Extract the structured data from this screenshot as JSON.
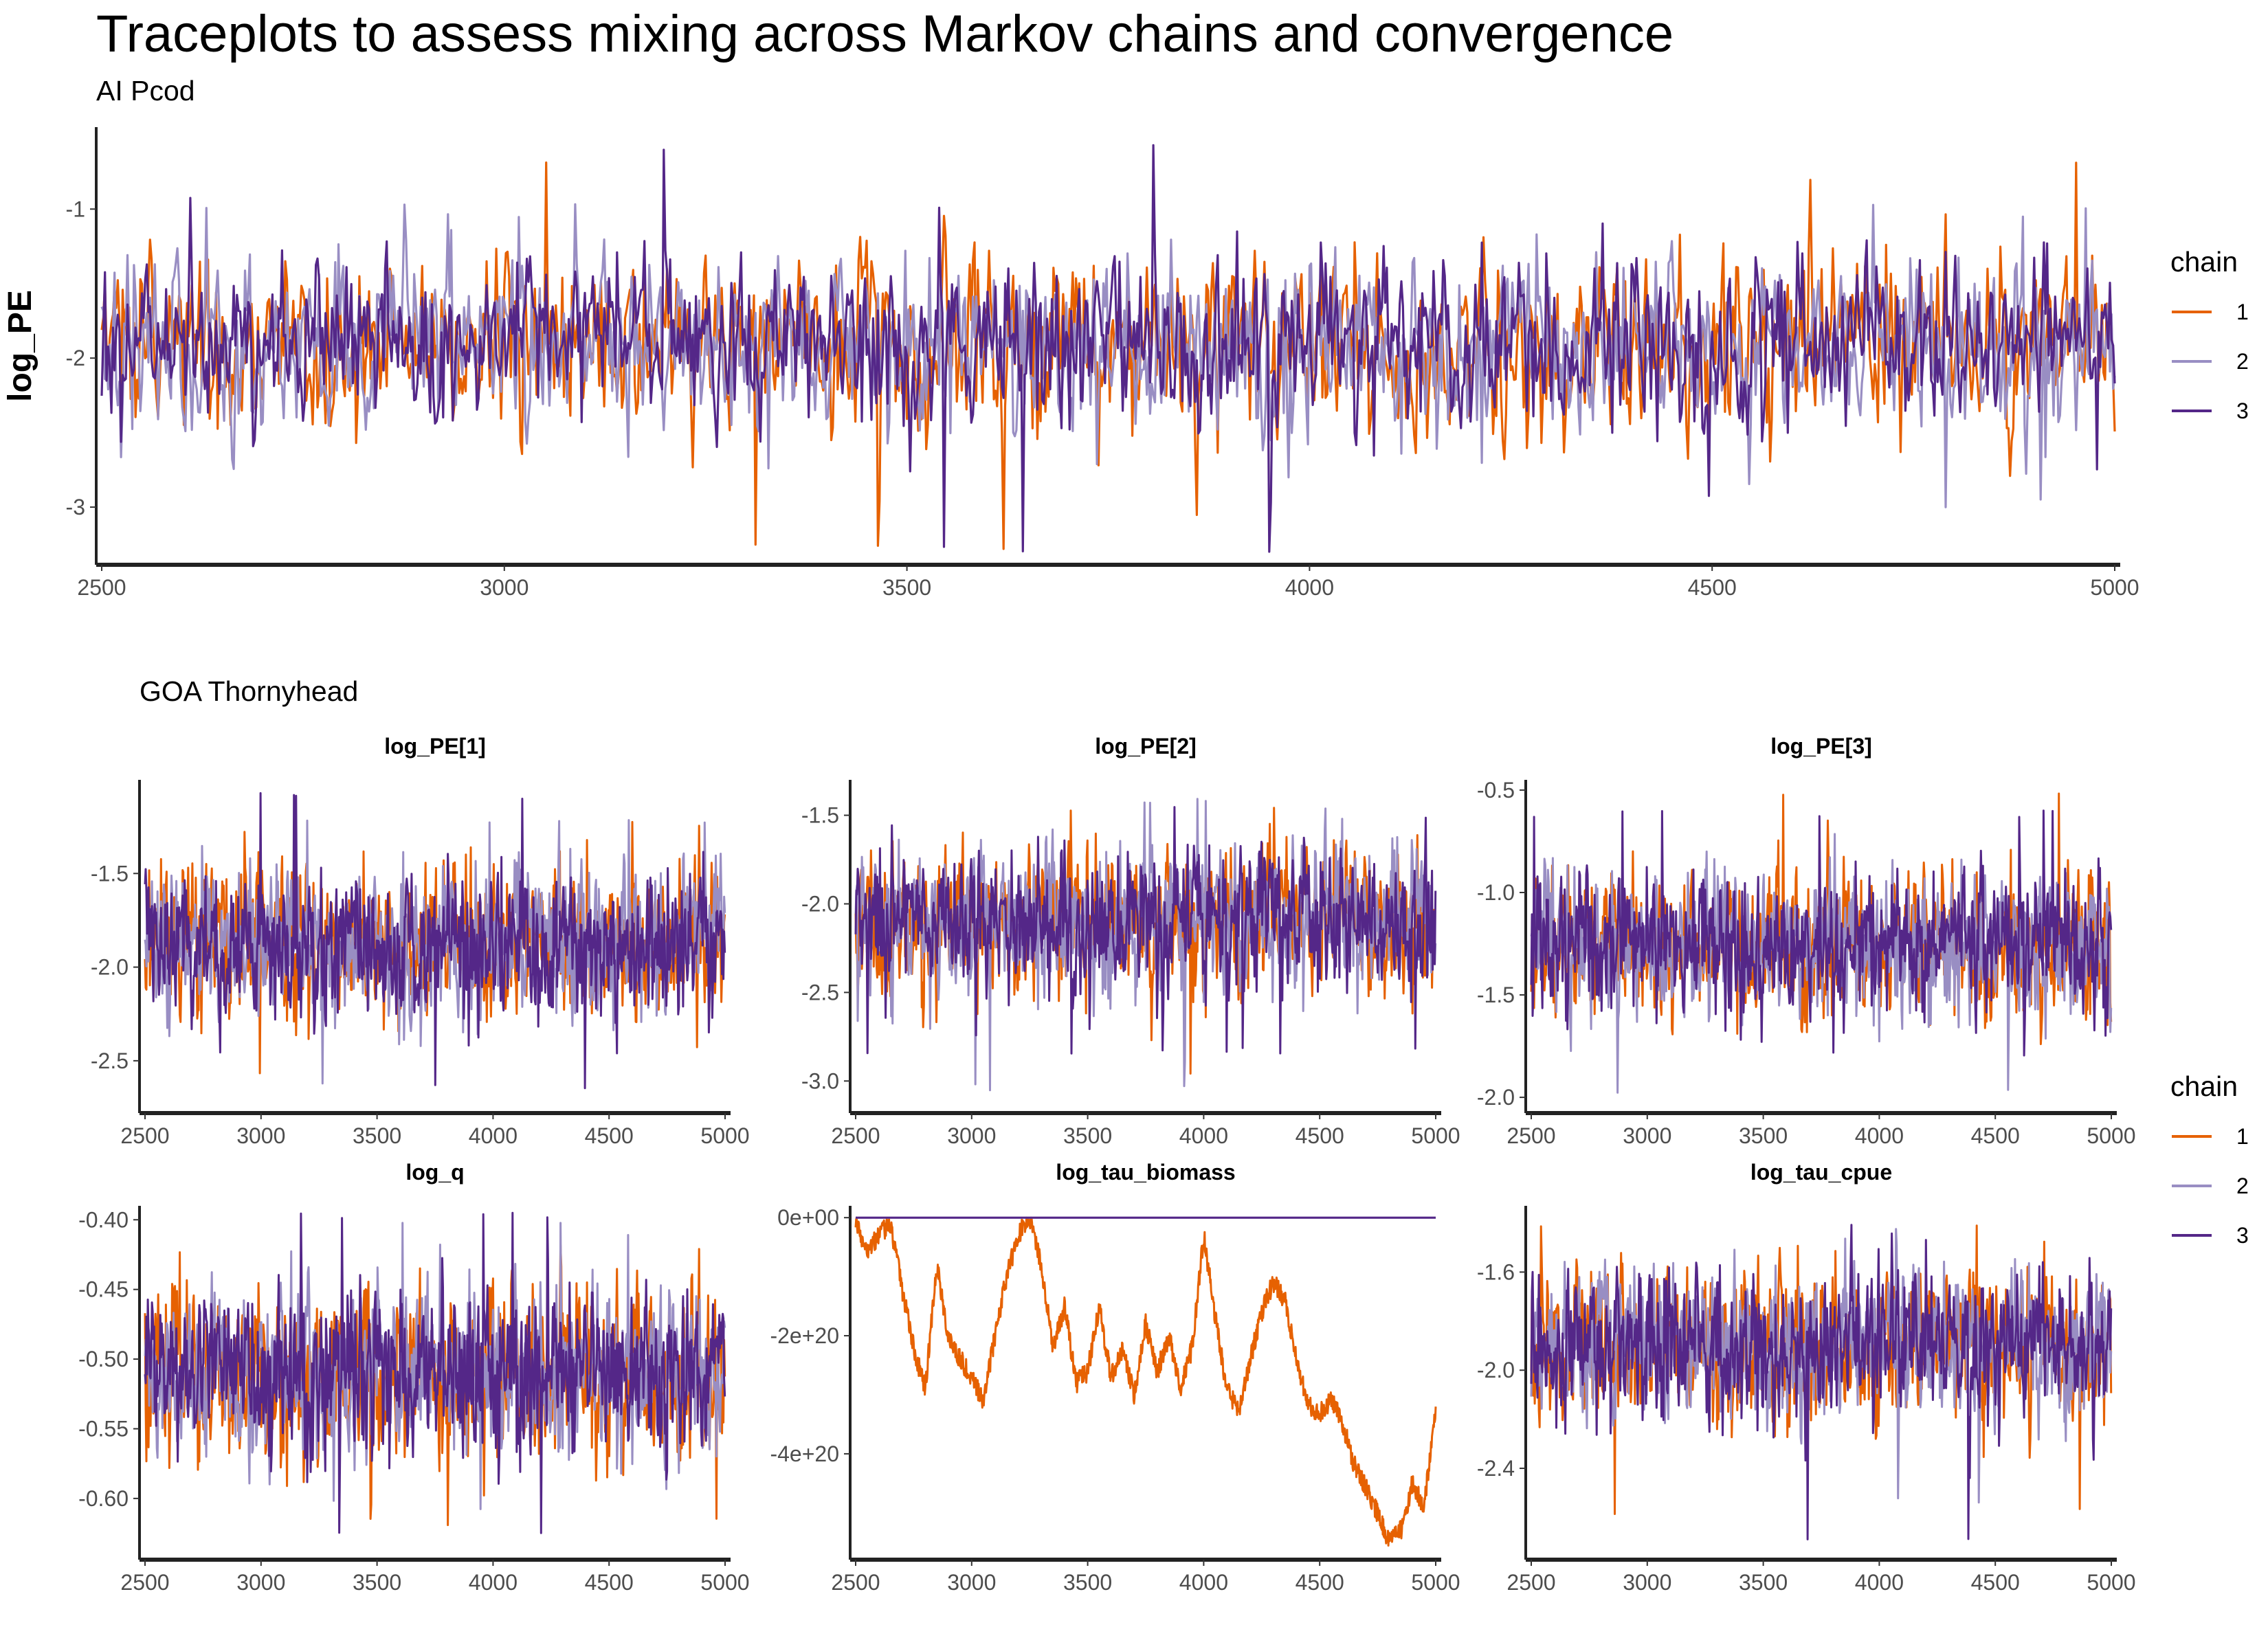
{
  "figure": {
    "title": "Traceplots to assess mixing across Markov chains and convergence",
    "top_subtitle": "AI Pcod",
    "bottom_subtitle": "GOA Thornyhead"
  },
  "legend": {
    "title": "chain",
    "items": [
      {
        "label": "1",
        "color": "#E66101"
      },
      {
        "label": "2",
        "color": "#998EC3"
      },
      {
        "label": "3",
        "color": "#542788"
      }
    ]
  },
  "chart_data": [
    {
      "type": "line",
      "group": "AI Pcod",
      "title": "",
      "ylabel": "log_PE",
      "x_range": [
        2500,
        5000
      ],
      "x_ticks": [
        2500,
        3000,
        3500,
        4000,
        4500,
        5000
      ],
      "y_ticks": [
        -1,
        -2,
        -3
      ],
      "ylim": [
        -3.35,
        -0.45
      ],
      "grid": false,
      "legend_position": "right",
      "series": [
        {
          "name": "1",
          "color": "#E66101",
          "kind": "noise",
          "center": -1.9,
          "sd": 0.28,
          "min": -3.3,
          "max": -0.67
        },
        {
          "name": "2",
          "color": "#998EC3",
          "kind": "noise",
          "center": -1.9,
          "sd": 0.27,
          "min": -3.0,
          "max": -0.95
        },
        {
          "name": "3",
          "color": "#542788",
          "kind": "noise",
          "center": -1.9,
          "sd": 0.26,
          "min": -3.33,
          "max": -0.54
        }
      ]
    },
    {
      "type": "line",
      "group": "GOA Thornyhead",
      "title": "log_PE[1]",
      "x_range": [
        2500,
        5000
      ],
      "x_ticks": [
        2500,
        3000,
        3500,
        4000,
        4500,
        5000
      ],
      "y_ticks": [
        -1.5,
        -2.0,
        -2.5
      ],
      "ylim": [
        -2.75,
        -1.0
      ],
      "grid": false,
      "series": [
        {
          "name": "1",
          "color": "#E66101",
          "kind": "noise",
          "center": -1.88,
          "sd": 0.18,
          "min": -2.6,
          "max": -1.2
        },
        {
          "name": "2",
          "color": "#998EC3",
          "kind": "noise",
          "center": -1.88,
          "sd": 0.18,
          "min": -2.66,
          "max": -1.2
        },
        {
          "name": "3",
          "color": "#542788",
          "kind": "noise",
          "center": -1.88,
          "sd": 0.17,
          "min": -2.66,
          "max": -1.07
        }
      ]
    },
    {
      "type": "line",
      "group": "GOA Thornyhead",
      "title": "log_PE[2]",
      "x_range": [
        2500,
        5000
      ],
      "x_ticks": [
        2500,
        3000,
        3500,
        4000,
        4500,
        5000
      ],
      "y_ticks": [
        -1.5,
        -2.0,
        -2.5,
        -3.0
      ],
      "ylim": [
        -3.15,
        -1.3
      ],
      "grid": false,
      "series": [
        {
          "name": "1",
          "color": "#E66101",
          "kind": "noise",
          "center": -2.1,
          "sd": 0.19,
          "min": -3.0,
          "max": -1.45
        },
        {
          "name": "2",
          "color": "#998EC3",
          "kind": "noise",
          "center": -2.1,
          "sd": 0.18,
          "min": -3.06,
          "max": -1.4
        },
        {
          "name": "3",
          "color": "#542788",
          "kind": "noise",
          "center": -2.1,
          "sd": 0.17,
          "min": -2.85,
          "max": -1.45
        }
      ]
    },
    {
      "type": "line",
      "group": "GOA Thornyhead",
      "title": "log_PE[3]",
      "x_range": [
        2500,
        5000
      ],
      "x_ticks": [
        2500,
        3000,
        3500,
        4000,
        4500,
        5000
      ],
      "y_ticks": [
        -0.5,
        -1.0,
        -1.5,
        -2.0
      ],
      "ylim": [
        -2.05,
        -0.45
      ],
      "grid": false,
      "series": [
        {
          "name": "1",
          "color": "#E66101",
          "kind": "noise",
          "center": -1.25,
          "sd": 0.17,
          "min": -1.9,
          "max": -0.5
        },
        {
          "name": "2",
          "color": "#998EC3",
          "kind": "noise",
          "center": -1.25,
          "sd": 0.16,
          "min": -2.0,
          "max": -0.6
        },
        {
          "name": "3",
          "color": "#542788",
          "kind": "noise",
          "center": -1.25,
          "sd": 0.15,
          "min": -1.8,
          "max": -0.6
        }
      ]
    },
    {
      "type": "line",
      "group": "GOA Thornyhead",
      "title": "log_q",
      "x_range": [
        2500,
        5000
      ],
      "x_ticks": [
        2500,
        3000,
        3500,
        4000,
        4500,
        5000
      ],
      "y_ticks": [
        -0.4,
        -0.45,
        -0.5,
        -0.55,
        -0.6
      ],
      "ylim": [
        -0.64,
        -0.39
      ],
      "grid": false,
      "series": [
        {
          "name": "1",
          "color": "#E66101",
          "kind": "noise",
          "center": -0.51,
          "sd": 0.028,
          "min": -0.62,
          "max": -0.41
        },
        {
          "name": "2",
          "color": "#998EC3",
          "kind": "noise",
          "center": -0.51,
          "sd": 0.027,
          "min": -0.61,
          "max": -0.4
        },
        {
          "name": "3",
          "color": "#542788",
          "kind": "noise",
          "center": -0.51,
          "sd": 0.026,
          "min": -0.63,
          "max": -0.395
        }
      ]
    },
    {
      "type": "line",
      "group": "GOA Thornyhead",
      "title": "log_tau_biomass",
      "x_range": [
        2500,
        5000
      ],
      "x_ticks": [
        2500,
        3000,
        3500,
        4000,
        4500,
        5000
      ],
      "y_ticks": [
        0,
        -2e+20,
        -4e+20
      ],
      "y_tick_labels": [
        "0e+00",
        "-2e+20",
        "-4e+20"
      ],
      "ylim": [
        -5.7e+20,
        2e+19
      ],
      "grid": false,
      "series": [
        {
          "name": "1",
          "color": "#E66101",
          "kind": "path",
          "points": [
            [
              2500,
              0
            ],
            [
              2550,
              -6e+19
            ],
            [
              2600,
              -3e+19
            ],
            [
              2650,
              -1e+19
            ],
            [
              2700,
              -1.2e+20
            ],
            [
              2750,
              -2.2e+20
            ],
            [
              2800,
              -2.9e+20
            ],
            [
              2850,
              -8e+19
            ],
            [
              2900,
              -2e+20
            ],
            [
              2950,
              -2.4e+20
            ],
            [
              3000,
              -2.7e+20
            ],
            [
              3050,
              -3.1e+20
            ],
            [
              3100,
              -2e+20
            ],
            [
              3150,
              -1e+20
            ],
            [
              3200,
              -3e+19
            ],
            [
              3250,
              0
            ],
            [
              3300,
              -8e+19
            ],
            [
              3350,
              -2.2e+20
            ],
            [
              3400,
              -1.5e+20
            ],
            [
              3450,
              -2.8e+20
            ],
            [
              3500,
              -2.6e+20
            ],
            [
              3550,
              -1.5e+20
            ],
            [
              3600,
              -2.7e+20
            ],
            [
              3650,
              -2.2e+20
            ],
            [
              3700,
              -3e+20
            ],
            [
              3750,
              -1.8e+20
            ],
            [
              3800,
              -2.6e+20
            ],
            [
              3850,
              -2e+20
            ],
            [
              3900,
              -2.9e+20
            ],
            [
              3950,
              -2.2e+20
            ],
            [
              4000,
              -3e+19
            ],
            [
              4050,
              -1.7e+20
            ],
            [
              4100,
              -2.9e+20
            ],
            [
              4150,
              -3.3e+20
            ],
            [
              4200,
              -2.4e+20
            ],
            [
              4250,
              -1.6e+20
            ],
            [
              4300,
              -1.1e+20
            ],
            [
              4350,
              -1.4e+20
            ],
            [
              4400,
              -2.4e+20
            ],
            [
              4450,
              -3.2e+20
            ],
            [
              4500,
              -3.3e+20
            ],
            [
              4550,
              -3.1e+20
            ],
            [
              4600,
              -3.5e+20
            ],
            [
              4650,
              -4.2e+20
            ],
            [
              4700,
              -4.6e+20
            ],
            [
              4750,
              -5e+20
            ],
            [
              4800,
              -5.5e+20
            ],
            [
              4850,
              -5.3e+20
            ],
            [
              4900,
              -4.5e+20
            ],
            [
              4950,
              -4.9e+20
            ],
            [
              5000,
              -3.2e+20
            ]
          ]
        },
        {
          "name": "2",
          "color": "#998EC3",
          "kind": "constant",
          "value": 0
        },
        {
          "name": "3",
          "color": "#542788",
          "kind": "constant",
          "value": 0
        }
      ]
    },
    {
      "type": "line",
      "group": "GOA Thornyhead",
      "title": "log_tau_cpue",
      "x_range": [
        2500,
        5000
      ],
      "x_ticks": [
        2500,
        3000,
        3500,
        4000,
        4500,
        5000
      ],
      "y_ticks": [
        -1.6,
        -2.0,
        -2.4
      ],
      "ylim": [
        -2.75,
        -1.33
      ],
      "grid": false,
      "series": [
        {
          "name": "1",
          "color": "#E66101",
          "kind": "noise",
          "center": -1.9,
          "sd": 0.14,
          "min": -2.6,
          "max": -1.4
        },
        {
          "name": "2",
          "color": "#998EC3",
          "kind": "noise",
          "center": -1.9,
          "sd": 0.14,
          "min": -2.55,
          "max": -1.4
        },
        {
          "name": "3",
          "color": "#542788",
          "kind": "noise",
          "center": -1.9,
          "sd": 0.13,
          "min": -2.7,
          "max": -1.4
        }
      ]
    }
  ]
}
